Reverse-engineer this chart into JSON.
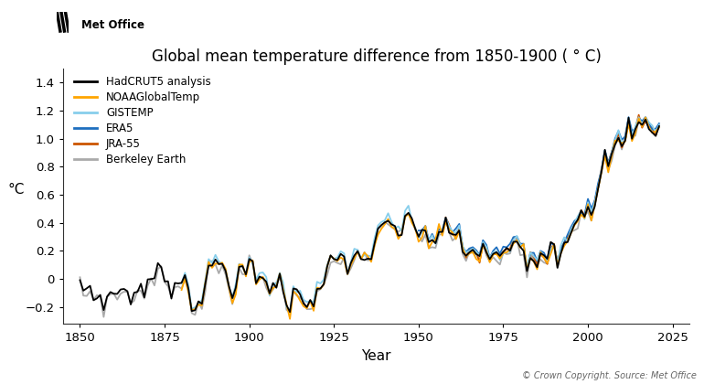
{
  "title": "Global mean temperature difference from 1850-1900 ( ° C)",
  "ylabel": "°C",
  "xlabel": "Year",
  "copyright": "© Crown Copyright. Source: Met Office",
  "logo_text": "Met Office",
  "ylim": [
    -0.32,
    1.5
  ],
  "xlim": [
    1845,
    2030
  ],
  "yticks": [
    -0.2,
    0.0,
    0.2,
    0.4,
    0.6,
    0.8,
    1.0,
    1.2,
    1.4
  ],
  "xticks": [
    1850,
    1875,
    1900,
    1925,
    1950,
    1975,
    2000,
    2025
  ],
  "series": {
    "HadCRUT5 analysis": {
      "color": "#000000",
      "lw": 1.3,
      "zorder": 6
    },
    "NOAAGlobalTemp": {
      "color": "#FFA500",
      "lw": 1.3,
      "zorder": 5
    },
    "GISTEMP": {
      "color": "#87CEEB",
      "lw": 1.3,
      "zorder": 4
    },
    "ERA5": {
      "color": "#1E6FBF",
      "lw": 1.3,
      "zorder": 4
    },
    "JRA-55": {
      "color": "#CC5500",
      "lw": 1.3,
      "zorder": 4
    },
    "Berkeley Earth": {
      "color": "#AAAAAA",
      "lw": 1.3,
      "zorder": 2
    }
  },
  "background_color": "#FFFFFF",
  "grid": false
}
